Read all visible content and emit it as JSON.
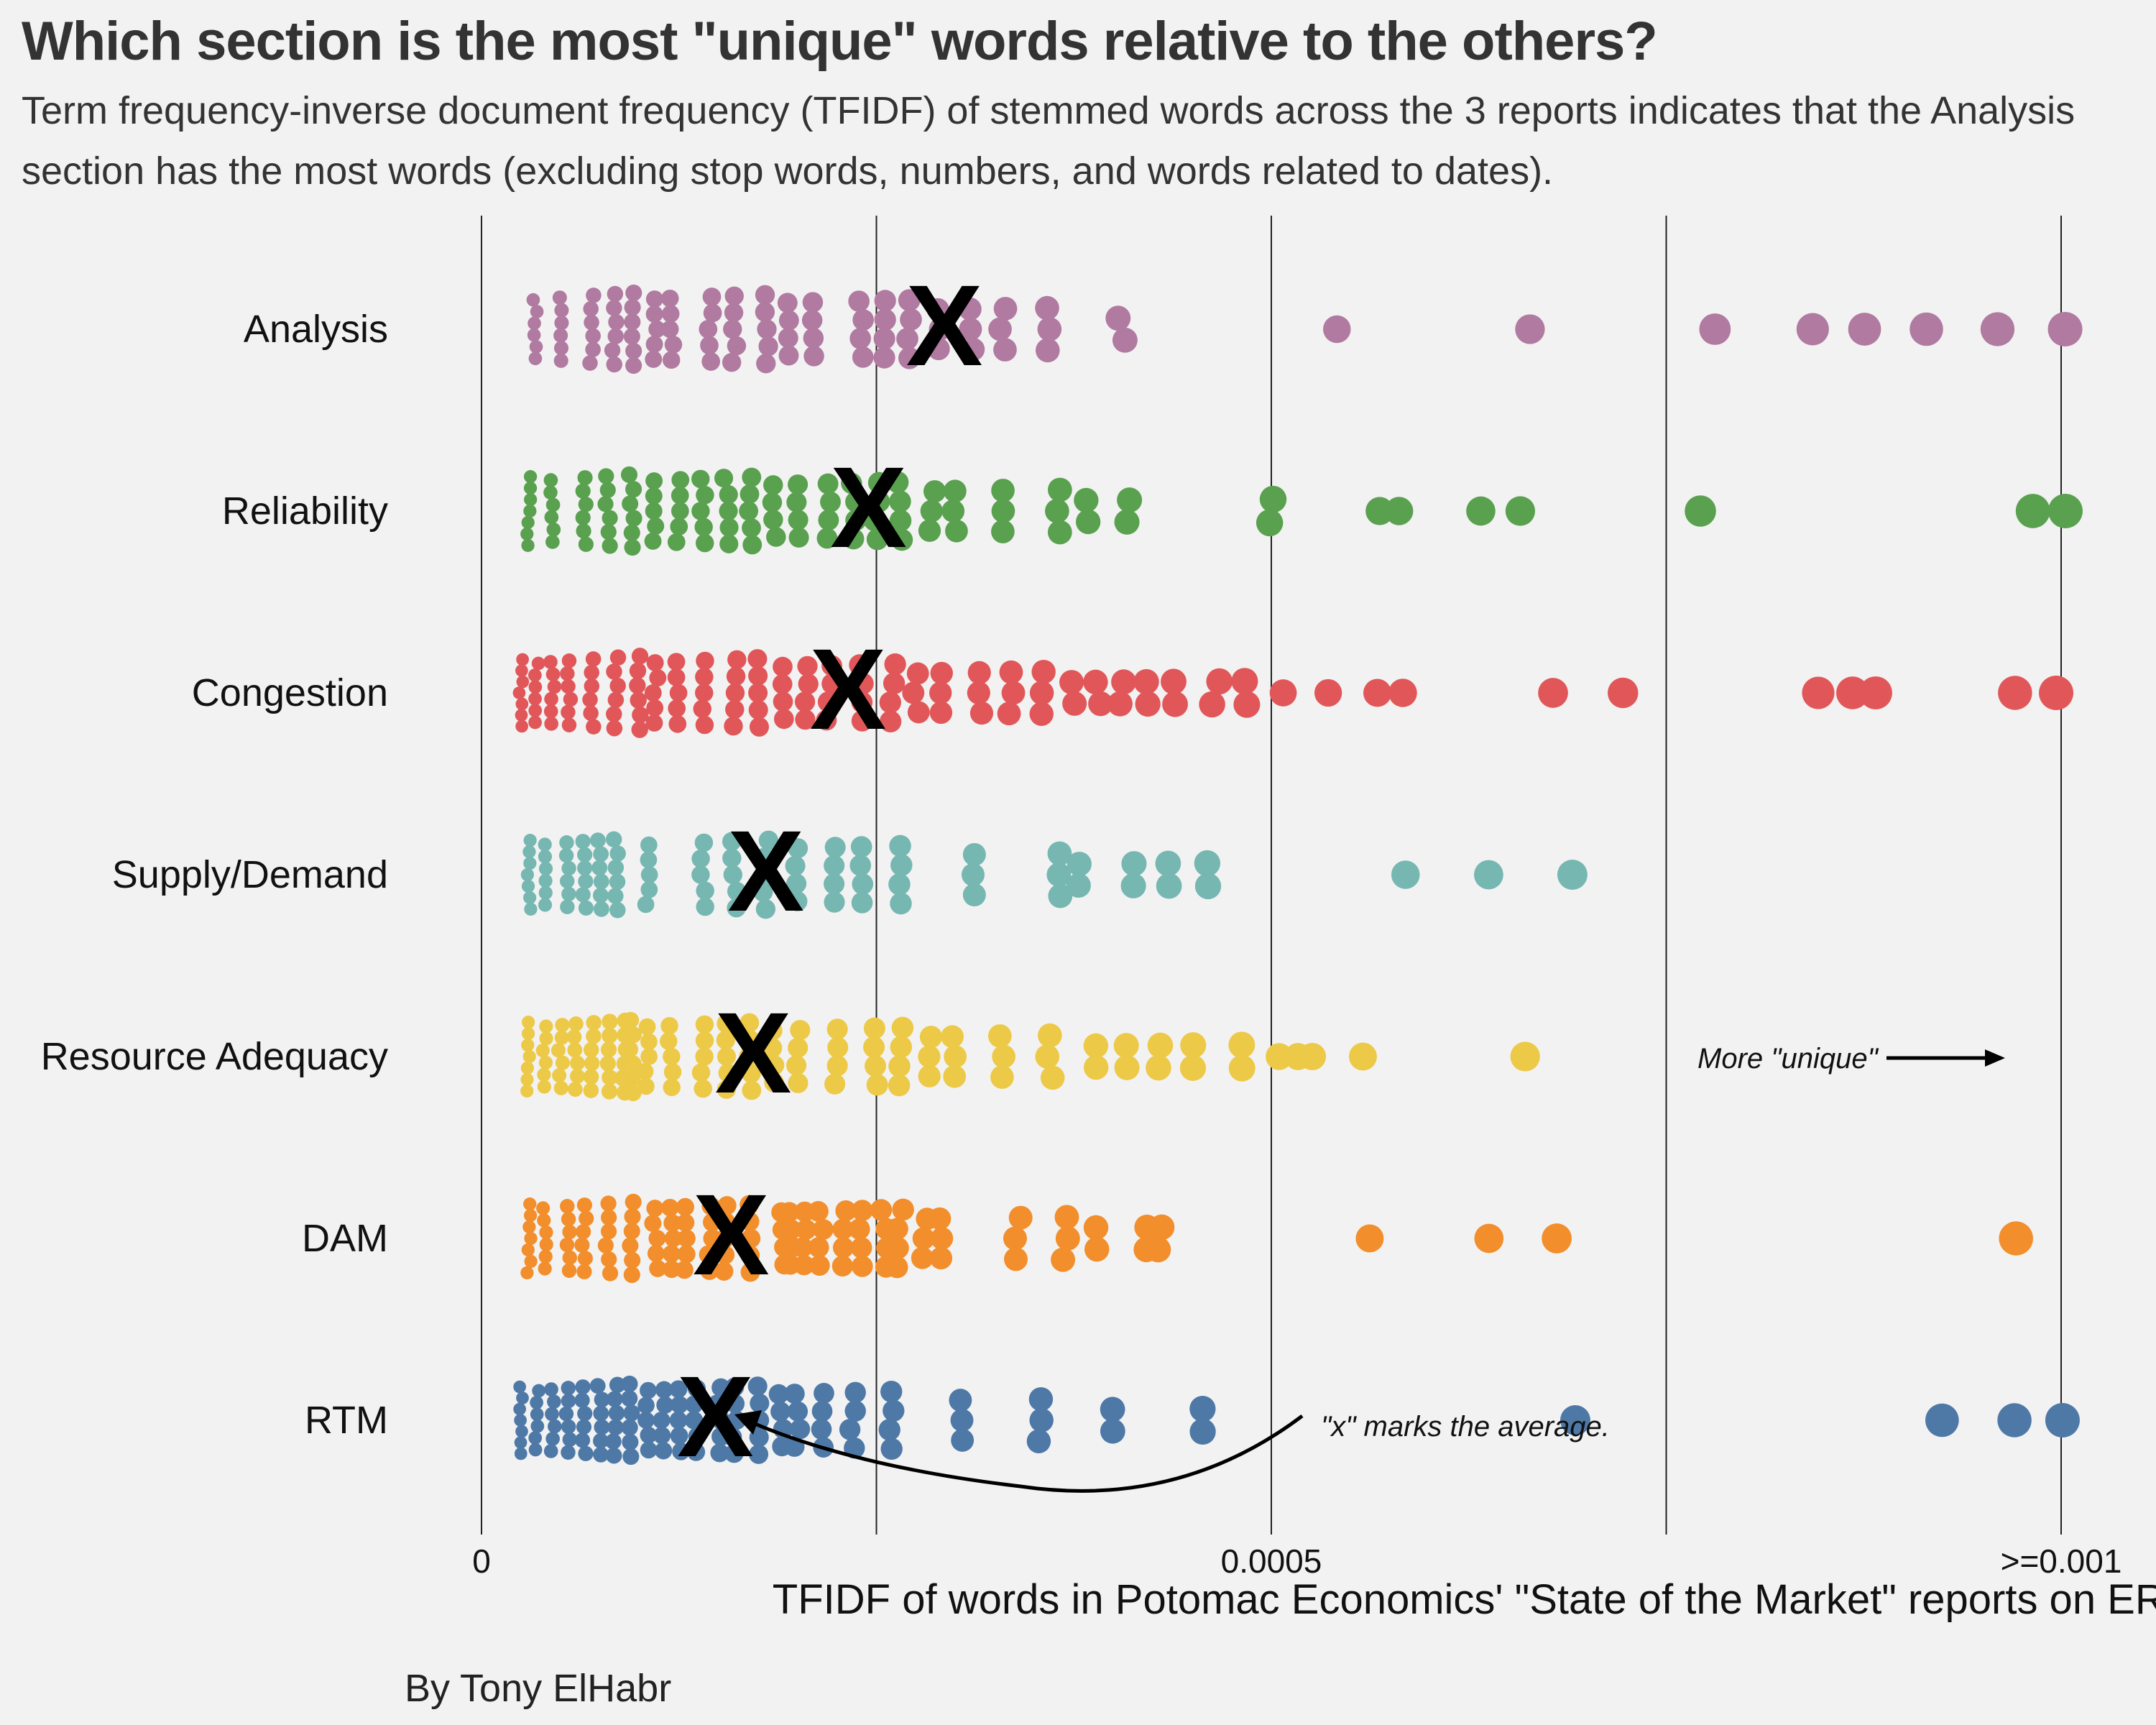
{
  "chart_data": {
    "type": "scatter",
    "title": "Which section is the most \"unique\" words relative to the others?",
    "subtitle": "Term frequency-inverse document frequency (TFIDF) of stemmed words across the 3 reports indicates that the Analysis section has the most words (excluding stop words, numbers, and words related to dates).",
    "xlabel": "TFIDF of words in Potomac Economics' \"State of the Market\" reports on ERCOT",
    "ylabel": "",
    "xlim": [
      0,
      0.001
    ],
    "xticks": [
      {
        "value": 0,
        "label": "0"
      },
      {
        "value": 0.0005,
        "label": "0.0005"
      },
      {
        "value": 0.001,
        "label": ">=0.001"
      }
    ],
    "gridlines": [
      0,
      0.00025,
      0.0005,
      0.00075,
      0.001
    ],
    "legend": "none",
    "annotations": {
      "mean_marker": "X",
      "mean_note": "\"x\" marks the average.",
      "direction_note": "More \"unique\""
    },
    "series": [
      {
        "name": "Analysis",
        "color": "#b07aa1",
        "mean": 0.000293,
        "x": [
          3.4e-05,
          5e-05,
          7e-05,
          8.4e-05,
          9.5e-05,
          0.00011,
          0.00012,
          0.000145,
          0.00016,
          0.00018,
          0.000195,
          0.00021,
          0.00024,
          0.000255,
          0.00027,
          0.00029,
          0.00031,
          0.00033,
          0.00036,
          0.000405,
          0.000543,
          0.000663,
          0.000783,
          0.000843,
          0.000875,
          0.000917,
          0.000957,
          0.001
        ]
      },
      {
        "name": "Reliability",
        "color": "#59a14f",
        "mean": 0.000245,
        "x": [
          3e-05,
          4.5e-05,
          6.5e-05,
          8e-05,
          9.5e-05,
          0.00011,
          0.000125,
          0.00014,
          0.000155,
          0.00017,
          0.000185,
          0.0002,
          0.00022,
          0.000235,
          0.00025,
          0.000265,
          0.000285,
          0.0003,
          0.00033,
          0.000365,
          0.000385,
          0.00041,
          0.0005,
          0.00057,
          0.00058,
          0.000633,
          0.00066,
          0.00077,
          0.00098,
          0.001
        ]
      },
      {
        "name": "Congestion",
        "color": "#e15759",
        "mean": 0.000232,
        "x": [
          2.5e-05,
          3.5e-05,
          4.5e-05,
          5.5e-05,
          7e-05,
          8.5e-05,
          0.0001,
          0.00011,
          0.000125,
          0.00014,
          0.00016,
          0.000175,
          0.00019,
          0.000205,
          0.00022,
          0.00024,
          0.00026,
          0.000275,
          0.00029,
          0.000315,
          0.000335,
          0.000355,
          0.000375,
          0.00039,
          0.000405,
          0.00042,
          0.00044,
          0.000465,
          0.000485,
          0.00051,
          0.000535,
          0.000565,
          0.000585,
          0.00068,
          0.00072,
          0.000845,
          0.00087,
          0.000885,
          0.00097,
          0.001
        ]
      },
      {
        "name": "Supply/Demand",
        "color": "#76b7b2",
        "mean": 0.00018,
        "x": [
          3e-05,
          4e-05,
          5.5e-05,
          6.5e-05,
          7.5e-05,
          8.5e-05,
          0.000105,
          0.00014,
          0.00016,
          0.00018,
          0.0002,
          0.000225,
          0.00024,
          0.000265,
          0.00031,
          0.000365,
          0.00038,
          0.000412,
          0.000435,
          0.00046,
          0.000587,
          0.00064,
          0.000693
        ]
      },
      {
        "name": "Resource Adequacy",
        "color": "#edc948",
        "mean": 0.000172,
        "x": [
          3e-05,
          4e-05,
          5e-05,
          6e-05,
          7e-05,
          8e-05,
          9e-05,
          9.5e-05,
          0.000105,
          0.00012,
          0.00014,
          0.000155,
          0.00017,
          0.000185,
          0.0002,
          0.000225,
          0.00025,
          0.000265,
          0.000285,
          0.0003,
          0.00033,
          0.00036,
          0.00039,
          0.00041,
          0.00043,
          0.00045,
          0.00048,
          0.000505,
          0.000515,
          0.000525,
          0.00056,
          0.00066
        ]
      },
      {
        "name": "DAM",
        "color": "#f28e2b",
        "mean": 0.000158,
        "x": [
          3e-05,
          4e-05,
          5.5e-05,
          6.5e-05,
          8e-05,
          9.5e-05,
          0.00011,
          0.00012,
          0.00013,
          0.000145,
          0.000155,
          0.00017,
          0.00019,
          0.000195,
          0.000205,
          0.000215,
          0.00023,
          0.00024,
          0.000255,
          0.000265,
          0.00028,
          0.00029,
          0.00034,
          0.00037,
          0.00039,
          0.00042,
          0.00043,
          0.00056,
          0.000635,
          0.00068,
          0.00097
        ]
      },
      {
        "name": "RTM",
        "color": "#4e79a7",
        "mean": 0.000148,
        "x": [
          2.5e-05,
          3.5e-05,
          4.5e-05,
          5.5e-05,
          6.5e-05,
          7.5e-05,
          8.5e-05,
          9.5e-05,
          0.000105,
          0.000115,
          0.000125,
          0.000135,
          0.00015,
          0.00016,
          0.000175,
          0.00019,
          0.0002,
          0.000215,
          0.000235,
          0.00026,
          0.000305,
          0.000355,
          0.0004,
          0.000455,
          0.000695,
          0.000925,
          0.00097,
          0.001
        ]
      }
    ]
  },
  "caption": "By Tony ElHabr"
}
